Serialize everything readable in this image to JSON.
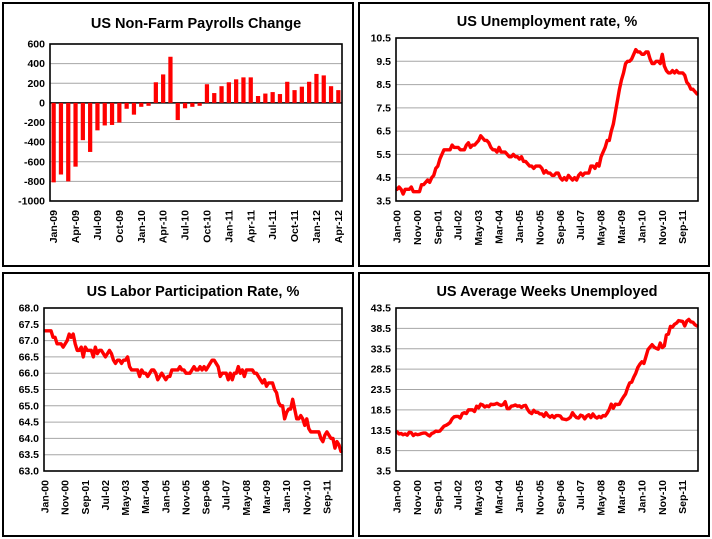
{
  "page": {
    "background": "#ffffff",
    "panel_border_color": "#000000"
  },
  "colors": {
    "series": "#ff0000",
    "gridline": "#a6a6a6",
    "axis": "#000000",
    "title": "#000000",
    "plot_background": "#ffffff"
  },
  "chart_data": [
    {
      "id": "nonfarm_payrolls",
      "type": "bar",
      "title": "US Non-Farm Payrolls Change",
      "xlabel": "",
      "ylabel": "",
      "ylim": [
        -1000,
        600
      ],
      "y_step": 200,
      "grid": true,
      "legend": "none",
      "y_tick_labels": [
        "600",
        "400",
        "200",
        "0",
        "-200",
        "-400",
        "-600",
        "-800",
        "-1000"
      ],
      "x_tick_interval": 3,
      "x_tick_labels": [
        "Jan-09",
        "Apr-09",
        "Jul-09",
        "Oct-09",
        "Jan-10",
        "Apr-10",
        "Jul-10",
        "Oct-10",
        "Jan-11",
        "Apr-11",
        "Jul-11",
        "Oct-11",
        "Jan-12",
        "Apr-12"
      ],
      "categories": [
        "Jan-09",
        "Feb-09",
        "Mar-09",
        "Apr-09",
        "May-09",
        "Jun-09",
        "Jul-09",
        "Aug-09",
        "Sep-09",
        "Oct-09",
        "Nov-09",
        "Dec-09",
        "Jan-10",
        "Feb-10",
        "Mar-10",
        "Apr-10",
        "May-10",
        "Jun-10",
        "Jul-10",
        "Aug-10",
        "Sep-10",
        "Oct-10",
        "Nov-10",
        "Dec-10",
        "Jan-11",
        "Feb-11",
        "Mar-11",
        "Apr-11",
        "May-11",
        "Jun-11",
        "Jul-11",
        "Aug-11",
        "Sep-11",
        "Oct-11",
        "Nov-11",
        "Dec-11",
        "Jan-12",
        "Feb-12",
        "Mar-12",
        "Apr-12"
      ],
      "values": [
        -810,
        -730,
        -800,
        -650,
        -380,
        -500,
        -280,
        -230,
        -225,
        -200,
        -60,
        -120,
        -40,
        -30,
        210,
        290,
        470,
        -175,
        -55,
        -40,
        -30,
        190,
        100,
        170,
        210,
        240,
        260,
        260,
        70,
        95,
        110,
        90,
        215,
        130,
        165,
        215,
        295,
        280,
        170,
        130
      ]
    },
    {
      "id": "unemployment_rate",
      "type": "line",
      "title": "US Unemployment rate, %",
      "xlabel": "",
      "ylabel": "",
      "ylim": [
        3.5,
        10.5
      ],
      "y_step": 1,
      "grid": true,
      "legend": "none",
      "y_tick_labels": [
        "10.5",
        "9.5",
        "8.5",
        "7.5",
        "6.5",
        "5.5",
        "4.5",
        "3.5"
      ],
      "x_start": "Jan-00",
      "x_end": "Apr-12",
      "x_tick_interval": 10,
      "x_tick_labels": [
        "Jan-00",
        "Nov-00",
        "Sep-01",
        "Jul-02",
        "May-03",
        "Mar-04",
        "Jan-05",
        "Nov-05",
        "Sep-06",
        "Jul-07",
        "May-08",
        "Mar-09",
        "Jan-10",
        "Nov-10",
        "Sep-11"
      ],
      "values": [
        4.0,
        4.1,
        4.0,
        3.8,
        4.0,
        4.0,
        4.0,
        4.1,
        3.9,
        3.9,
        3.9,
        3.9,
        4.2,
        4.2,
        4.3,
        4.4,
        4.3,
        4.5,
        4.6,
        4.9,
        5.0,
        5.3,
        5.5,
        5.7,
        5.7,
        5.7,
        5.7,
        5.9,
        5.8,
        5.8,
        5.8,
        5.7,
        5.7,
        5.7,
        5.9,
        6.0,
        5.8,
        5.9,
        5.9,
        6.0,
        6.1,
        6.3,
        6.2,
        6.1,
        6.1,
        6.0,
        5.8,
        5.7,
        5.7,
        5.6,
        5.8,
        5.6,
        5.6,
        5.6,
        5.5,
        5.4,
        5.4,
        5.5,
        5.4,
        5.4,
        5.3,
        5.4,
        5.2,
        5.2,
        5.1,
        5.0,
        5.0,
        4.9,
        5.0,
        5.0,
        5.0,
        4.9,
        4.7,
        4.8,
        4.7,
        4.7,
        4.6,
        4.6,
        4.7,
        4.7,
        4.5,
        4.4,
        4.5,
        4.4,
        4.6,
        4.5,
        4.4,
        4.5,
        4.4,
        4.6,
        4.7,
        4.6,
        4.7,
        4.7,
        4.7,
        5.0,
        5.0,
        4.9,
        5.1,
        5.0,
        5.4,
        5.6,
        5.8,
        6.1,
        6.1,
        6.5,
        6.8,
        7.3,
        7.8,
        8.3,
        8.7,
        9.0,
        9.4,
        9.5,
        9.5,
        9.6,
        9.8,
        10.0,
        9.9,
        9.9,
        9.8,
        9.8,
        9.9,
        9.9,
        9.6,
        9.4,
        9.4,
        9.5,
        9.5,
        9.4,
        9.8,
        9.3,
        9.1,
        9.0,
        9.0,
        9.1,
        9.0,
        9.1,
        9.0,
        9.0,
        9.0,
        8.9,
        8.6,
        8.5,
        8.3,
        8.3,
        8.2,
        8.1
      ]
    },
    {
      "id": "labor_participation_rate",
      "type": "line",
      "title": "US Labor Participation Rate, %",
      "xlabel": "",
      "ylabel": "",
      "ylim": [
        63.0,
        68.0
      ],
      "y_step": 0.5,
      "grid": true,
      "legend": "none",
      "y_tick_labels": [
        "68.0",
        "67.5",
        "67.0",
        "66.5",
        "66.0",
        "65.5",
        "65.0",
        "64.5",
        "64.0",
        "63.5",
        "63.0"
      ],
      "x_start": "Jan-00",
      "x_end": "Apr-12",
      "x_tick_interval": 10,
      "x_tick_labels": [
        "Jan-00",
        "Nov-00",
        "Sep-01",
        "Jul-02",
        "May-03",
        "Mar-04",
        "Jan-05",
        "Nov-05",
        "Sep-06",
        "Jul-07",
        "May-08",
        "Mar-09",
        "Jan-10",
        "Nov-10",
        "Sep-11"
      ],
      "values": [
        67.3,
        67.3,
        67.3,
        67.3,
        67.1,
        67.1,
        66.9,
        66.9,
        66.9,
        66.8,
        66.9,
        67.0,
        67.2,
        67.1,
        67.2,
        66.9,
        66.7,
        66.7,
        66.8,
        66.5,
        66.8,
        66.7,
        66.7,
        66.7,
        66.5,
        66.8,
        66.6,
        66.7,
        66.7,
        66.6,
        66.5,
        66.6,
        66.7,
        66.6,
        66.4,
        66.3,
        66.4,
        66.4,
        66.3,
        66.4,
        66.4,
        66.5,
        66.2,
        66.1,
        66.1,
        66.1,
        66.1,
        65.9,
        66.1,
        66.0,
        66.0,
        65.9,
        66.0,
        66.1,
        66.1,
        66.0,
        65.8,
        65.9,
        66.0,
        65.9,
        65.8,
        65.9,
        65.9,
        66.1,
        66.1,
        66.1,
        66.1,
        66.2,
        66.1,
        66.1,
        66.0,
        66.0,
        66.0,
        66.1,
        66.2,
        66.1,
        66.1,
        66.2,
        66.1,
        66.2,
        66.1,
        66.2,
        66.3,
        66.4,
        66.4,
        66.3,
        66.2,
        65.9,
        66.0,
        66.0,
        66.0,
        65.8,
        66.0,
        65.8,
        66.0,
        66.0,
        66.2,
        66.0,
        66.1,
        65.9,
        66.1,
        66.1,
        66.1,
        66.1,
        66.0,
        66.0,
        65.9,
        65.8,
        65.7,
        65.8,
        65.6,
        65.7,
        65.7,
        65.7,
        65.5,
        65.4,
        65.1,
        65.0,
        65.0,
        64.6,
        64.8,
        64.9,
        64.9,
        65.2,
        64.9,
        64.6,
        64.6,
        64.7,
        64.6,
        64.4,
        64.6,
        64.3,
        64.2,
        64.2,
        64.2,
        64.2,
        64.2,
        64.0,
        63.9,
        64.1,
        64.2,
        64.1,
        64.0,
        64.0,
        63.7,
        63.9,
        63.8,
        63.6
      ]
    },
    {
      "id": "average_weeks_unemployed",
      "type": "line",
      "title": "US Average Weeks Unemployed",
      "xlabel": "",
      "ylabel": "",
      "ylim": [
        3.5,
        43.5
      ],
      "y_step": 5,
      "grid": true,
      "legend": "none",
      "y_tick_labels": [
        "43.5",
        "38.5",
        "33.5",
        "28.5",
        "23.5",
        "18.5",
        "13.5",
        "8.5",
        "3.5"
      ],
      "x_start": "Jan-00",
      "x_end": "Apr-12",
      "x_tick_interval": 10,
      "x_tick_labels": [
        "Jan-00",
        "Nov-00",
        "Sep-01",
        "Jul-02",
        "May-03",
        "Mar-04",
        "Jan-05",
        "Nov-05",
        "Sep-06",
        "Jul-07",
        "May-08",
        "Mar-09",
        "Jan-10",
        "Nov-10",
        "Sep-11"
      ],
      "values": [
        13.1,
        12.6,
        12.7,
        12.4,
        12.6,
        12.3,
        13.0,
        12.9,
        12.2,
        12.6,
        12.4,
        12.5,
        12.7,
        12.8,
        12.8,
        12.4,
        12.1,
        12.7,
        12.9,
        13.3,
        13.2,
        13.3,
        13.9,
        14.5,
        14.7,
        15.0,
        15.4,
        16.3,
        16.8,
        16.9,
        16.9,
        16.5,
        17.6,
        17.8,
        17.6,
        18.5,
        18.5,
        18.5,
        18.1,
        19.4,
        19.0,
        19.9,
        19.7,
        19.2,
        19.5,
        19.3,
        19.9,
        19.8,
        19.9,
        20.1,
        19.8,
        19.6,
        19.8,
        20.5,
        18.8,
        18.8,
        19.4,
        19.5,
        19.7,
        19.4,
        19.5,
        19.1,
        19.5,
        19.6,
        18.6,
        17.9,
        17.6,
        18.4,
        17.9,
        17.9,
        17.5,
        17.5,
        16.9,
        17.8,
        17.1,
        16.7,
        17.1,
        16.6,
        17.1,
        17.1,
        17.0,
        16.3,
        16.2,
        16.1,
        16.3,
        16.7,
        17.8,
        17.1,
        16.6,
        16.5,
        17.2,
        17.0,
        16.3,
        17.0,
        17.3,
        16.6,
        17.5,
        16.8,
        16.5,
        16.9,
        16.6,
        17.1,
        17.0,
        17.7,
        18.6,
        19.9,
        18.9,
        19.9,
        19.8,
        19.9,
        20.9,
        21.7,
        22.4,
        23.9,
        25.1,
        25.3,
        26.5,
        27.5,
        28.9,
        29.7,
        30.3,
        29.9,
        31.6,
        33.3,
        33.9,
        34.5,
        33.9,
        33.6,
        33.4,
        34.9,
        33.8,
        34.2,
        36.9,
        37.1,
        39.0,
        38.8,
        39.5,
        39.8,
        40.4,
        40.3,
        40.2,
        39.1,
        40.3,
        40.7,
        40.1,
        40.0,
        39.4,
        39.1
      ]
    }
  ]
}
